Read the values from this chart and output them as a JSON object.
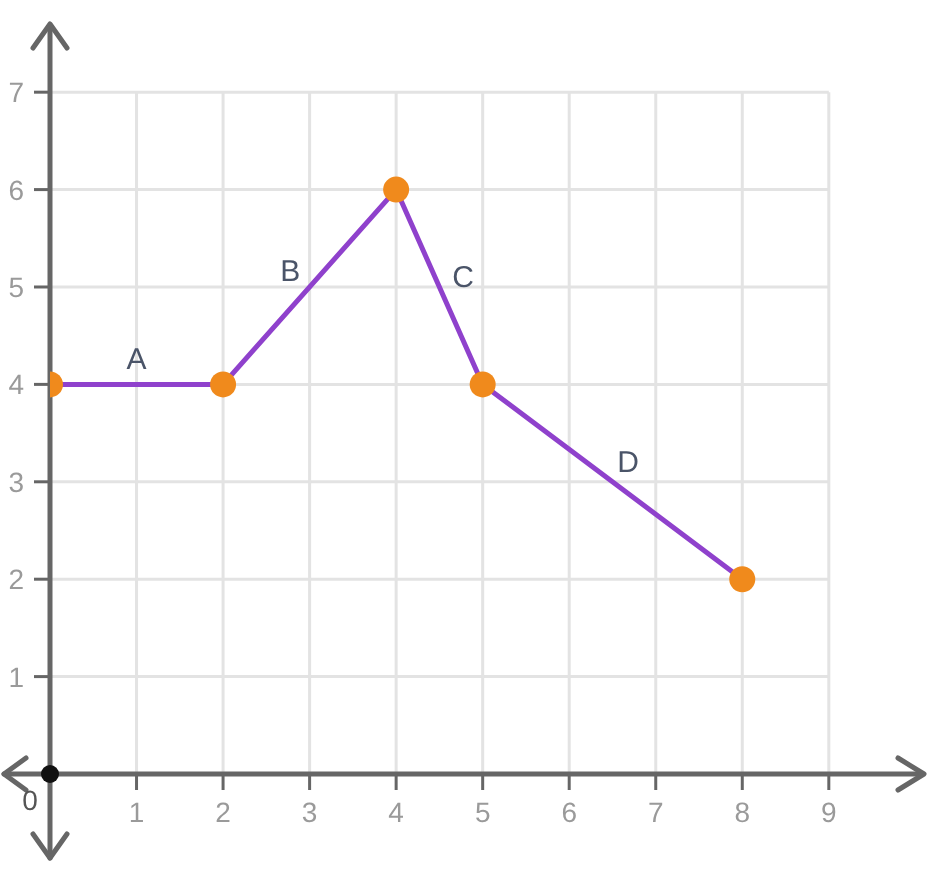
{
  "chart_data": {
    "type": "line",
    "x": [
      0,
      2,
      4,
      5,
      8
    ],
    "series": [
      {
        "color": "#8f41cc",
        "colors": [
          "#f08a1c",
          "#f08a1c",
          "#f08a1c",
          "#f08a1c",
          "#f08a1c"
        ],
        "values": [
          4,
          4,
          6,
          4,
          2
        ]
      }
    ],
    "xlim": [
      0,
      10.1
    ],
    "ylim": [
      0,
      7.7
    ],
    "xticks": [
      1,
      2,
      3,
      4,
      5,
      6,
      7,
      8,
      9
    ],
    "yticks": [
      1,
      2,
      3,
      4,
      5,
      6,
      7
    ],
    "grid": true,
    "marker": "circle",
    "line_style": "solid",
    "annotations": [
      "0",
      {
        "text": "A",
        "x": 1,
        "y": 4
      },
      {
        "text": "B",
        "x": 3,
        "y": 5
      },
      {
        "text": "C",
        "x": 4.5,
        "y": 5
      },
      {
        "text": "D",
        "x": 6.5,
        "y": 3
      }
    ]
  }
}
